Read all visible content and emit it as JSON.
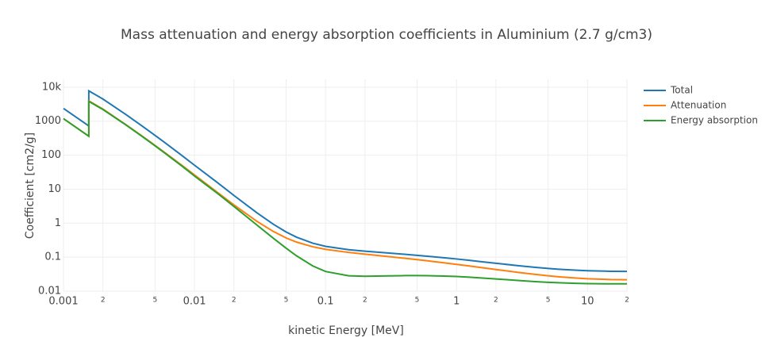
{
  "chart_data": {
    "type": "line",
    "title": "Mass attenuation and energy absorption coefficients in Aluminium (2.7 g/cm3)",
    "x_label": "kinetic Energy [MeV]",
    "y_label": "Coefficient [cm2/g]",
    "x_scale": "log",
    "y_scale": "log",
    "grid": true,
    "legend": "right",
    "x": [
      0.001,
      0.0015,
      0.00156,
      0.00156,
      0.002,
      0.003,
      0.004,
      0.005,
      0.006,
      0.008,
      0.01,
      0.015,
      0.02,
      0.03,
      0.04,
      0.05,
      0.06,
      0.08,
      0.1,
      0.15,
      0.2,
      0.3,
      0.4,
      0.5,
      0.6,
      0.8,
      1,
      1.25,
      1.5,
      2,
      3,
      4,
      5,
      6,
      8,
      10,
      15,
      20
    ],
    "series": [
      {
        "name": "Total",
        "color": "#1f77b4",
        "values": [
          2368,
          802.3,
          722.1,
          7787,
          4467,
          1561,
          711.9,
          381.3,
          226.9,
          98.36,
          50.57,
          15.44,
          6.535,
          2.006,
          0.9286,
          0.5521,
          0.3877,
          0.2569,
          0.2083,
          0.1661,
          0.1498,
          0.1324,
          0.1214,
          0.1131,
          0.1065,
          0.0962,
          0.0884,
          0.0808,
          0.0747,
          0.0661,
          0.0559,
          0.0501,
          0.0466,
          0.0442,
          0.0414,
          0.0399,
          0.0384,
          0.0381
        ]
      },
      {
        "name": "Attenuation",
        "color": "#ff7f0e",
        "values": [
          1185,
          402.2,
          362.1,
          3957,
          2263,
          788,
          360.5,
          193.4,
          115.3,
          50.33,
          26.23,
          7.955,
          3.441,
          1.128,
          0.5685,
          0.3681,
          0.2778,
          0.2018,
          0.1704,
          0.1378,
          0.1223,
          0.1042,
          0.09276,
          0.08445,
          0.07802,
          0.06841,
          0.06146,
          0.05496,
          0.05006,
          0.04324,
          0.03541,
          0.03106,
          0.02836,
          0.02655,
          0.02437,
          0.02318,
          0.02195,
          0.02168
        ]
      },
      {
        "name": "Energy absorption",
        "color": "#2ca02c",
        "values": [
          1183,
          400.1,
          360,
          3830,
          2204,
          773,
          351.4,
          187.9,
          111.6,
          48.03,
          24.34,
          7.487,
          3.094,
          0.8778,
          0.3601,
          0.184,
          0.1099,
          0.05511,
          0.03794,
          0.02827,
          0.02745,
          0.02816,
          0.02862,
          0.02868,
          0.02851,
          0.02778,
          0.02695,
          0.02579,
          0.02462,
          0.02288,
          0.02051,
          0.01908,
          0.0182,
          0.01765,
          0.01698,
          0.01669,
          0.0164,
          0.01645
        ]
      }
    ],
    "xlim": [
      0.001,
      20
    ],
    "ylim": [
      0.01,
      17000
    ],
    "xticks": [
      0.001,
      {
        "value": 0.002,
        "label": "2"
      },
      {
        "value": 0.005,
        "label": "5"
      },
      0.01,
      {
        "value": 0.02,
        "label": "2"
      },
      {
        "value": 0.05,
        "label": "5"
      },
      0.1,
      {
        "value": 0.2,
        "label": "2"
      },
      {
        "value": 0.5,
        "label": "5"
      },
      1,
      {
        "value": 2,
        "label": "2"
      },
      {
        "value": 5,
        "label": "5"
      },
      10,
      {
        "value": 20,
        "label": "2"
      }
    ],
    "yticks": [
      0.01,
      0.1,
      1,
      10,
      100,
      1000,
      {
        "value": 10000,
        "label": "10k"
      }
    ]
  }
}
